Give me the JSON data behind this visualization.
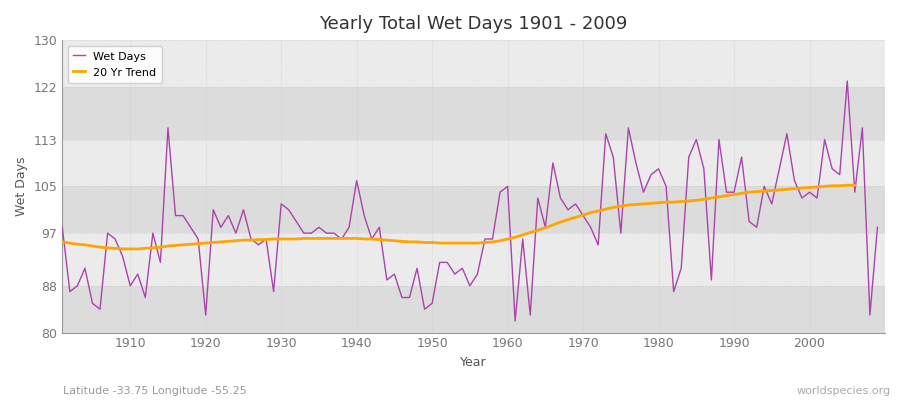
{
  "title": "Yearly Total Wet Days 1901 - 2009",
  "xlabel": "Year",
  "ylabel": "Wet Days",
  "subtitle": "Latitude -33.75 Longitude -55.25",
  "watermark": "worldspecies.org",
  "wet_days_color": "#AA44AA",
  "trend_color": "#FFA500",
  "fig_bg_color": "#FFFFFF",
  "plot_bg_color": "#F0F0F0",
  "band_color_light": "#EBEBEB",
  "band_color_dark": "#DCDCDC",
  "ylim": [
    80,
    130
  ],
  "yticks": [
    80,
    88,
    97,
    105,
    113,
    122,
    130
  ],
  "years": [
    1901,
    1902,
    1903,
    1904,
    1905,
    1906,
    1907,
    1908,
    1909,
    1910,
    1911,
    1912,
    1913,
    1914,
    1915,
    1916,
    1917,
    1918,
    1919,
    1920,
    1921,
    1922,
    1923,
    1924,
    1925,
    1926,
    1927,
    1928,
    1929,
    1930,
    1931,
    1932,
    1933,
    1934,
    1935,
    1936,
    1937,
    1938,
    1939,
    1940,
    1941,
    1942,
    1943,
    1944,
    1945,
    1946,
    1947,
    1948,
    1949,
    1950,
    1951,
    1952,
    1953,
    1954,
    1955,
    1956,
    1957,
    1958,
    1959,
    1960,
    1961,
    1962,
    1963,
    1964,
    1965,
    1966,
    1967,
    1968,
    1969,
    1970,
    1971,
    1972,
    1973,
    1974,
    1975,
    1976,
    1977,
    1978,
    1979,
    1980,
    1981,
    1982,
    1983,
    1984,
    1985,
    1986,
    1987,
    1988,
    1989,
    1990,
    1991,
    1992,
    1993,
    1994,
    1995,
    1996,
    1997,
    1998,
    1999,
    2000,
    2001,
    2002,
    2003,
    2004,
    2005,
    2006,
    2007,
    2008,
    2009
  ],
  "wet_days": [
    98,
    87,
    88,
    91,
    85,
    84,
    97,
    96,
    93,
    88,
    90,
    86,
    97,
    92,
    115,
    100,
    100,
    98,
    96,
    83,
    101,
    98,
    100,
    97,
    101,
    96,
    95,
    96,
    87,
    102,
    101,
    99,
    97,
    97,
    98,
    97,
    97,
    96,
    98,
    106,
    100,
    96,
    98,
    89,
    90,
    86,
    86,
    91,
    84,
    85,
    92,
    92,
    90,
    91,
    88,
    90,
    96,
    96,
    104,
    105,
    82,
    96,
    83,
    103,
    98,
    109,
    103,
    101,
    102,
    100,
    98,
    95,
    114,
    110,
    97,
    115,
    109,
    104,
    107,
    108,
    105,
    87,
    91,
    110,
    113,
    108,
    89,
    113,
    104,
    104,
    110,
    99,
    98,
    105,
    102,
    108,
    114,
    106,
    103,
    104,
    103,
    113,
    108,
    107,
    123,
    104,
    115,
    83,
    98
  ],
  "trend": [
    95.5,
    95.3,
    95.1,
    95.0,
    94.8,
    94.6,
    94.5,
    94.4,
    94.3,
    94.3,
    94.3,
    94.4,
    94.5,
    94.6,
    94.8,
    94.9,
    95.0,
    95.1,
    95.2,
    95.3,
    95.4,
    95.5,
    95.6,
    95.7,
    95.8,
    95.8,
    95.9,
    95.9,
    96.0,
    96.0,
    96.0,
    96.0,
    96.1,
    96.1,
    96.1,
    96.1,
    96.1,
    96.1,
    96.1,
    96.1,
    96.0,
    96.0,
    95.9,
    95.8,
    95.7,
    95.6,
    95.5,
    95.5,
    95.4,
    95.4,
    95.3,
    95.3,
    95.3,
    95.3,
    95.3,
    95.3,
    95.4,
    95.5,
    95.7,
    96.0,
    96.3,
    96.7,
    97.1,
    97.5,
    97.9,
    98.4,
    98.9,
    99.3,
    99.7,
    100.1,
    100.5,
    100.8,
    101.1,
    101.4,
    101.6,
    101.8,
    101.9,
    102.0,
    102.1,
    102.2,
    102.3,
    102.3,
    102.4,
    102.5,
    102.6,
    102.8,
    103.0,
    103.2,
    103.4,
    103.6,
    103.8,
    104.0,
    104.1,
    104.2,
    104.3,
    104.4,
    104.5,
    104.6,
    104.7,
    104.8,
    104.9,
    105.0,
    105.1,
    105.1,
    105.2,
    105.2,
    null,
    null,
    null
  ]
}
